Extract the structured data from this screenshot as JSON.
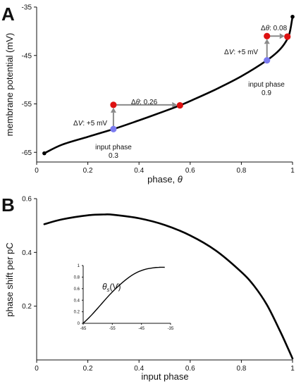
{
  "chart_data": [
    {
      "type": "line",
      "panel_label": "A",
      "xlabel_prefix": "phase, ",
      "xlabel_symbol": "θ",
      "ylabel": "membrane potential (mV)",
      "xlim": [
        0,
        1
      ],
      "ylim": [
        -67,
        -35
      ],
      "x_ticks": [
        0,
        0.2,
        0.4,
        0.6,
        0.8,
        1
      ],
      "x_tick_labels": [
        "0",
        "0.2",
        "0.4",
        "0.6",
        "0.8",
        "1"
      ],
      "y_ticks": [
        -65,
        -55,
        -45,
        -35
      ],
      "y_tick_labels": [
        "-65",
        "-55",
        "-45",
        "-35"
      ],
      "curve": {
        "x": [
          0.03,
          0.1,
          0.2,
          0.3,
          0.4,
          0.5,
          0.56,
          0.6,
          0.7,
          0.8,
          0.9,
          0.95,
          0.98,
          0.99,
          1.0
        ],
        "y": [
          -65.2,
          -63.4,
          -61.8,
          -60.2,
          -58.4,
          -56.5,
          -55.3,
          -54.4,
          -52.0,
          -49.3,
          -46.0,
          -43.8,
          -41.6,
          -40.0,
          -37.0
        ]
      },
      "endpoints": [
        {
          "x": 0.03,
          "y": -65.2
        },
        {
          "x": 1.0,
          "y": -37.0
        }
      ],
      "points": [
        {
          "x": 0.3,
          "y": -60.2,
          "color": "#7b7bf0"
        },
        {
          "x": 0.3,
          "y": -55.2,
          "color": "#dd1111"
        },
        {
          "x": 0.56,
          "y": -55.3,
          "color": "#dd1111"
        },
        {
          "x": 0.9,
          "y": -46.0,
          "color": "#7b7bf0"
        },
        {
          "x": 0.9,
          "y": -41.0,
          "color": "#dd1111"
        },
        {
          "x": 0.98,
          "y": -41.1,
          "color": "#dd1111"
        }
      ],
      "arrows": [
        {
          "x1": 0.3,
          "y1": -60.2,
          "x2": 0.3,
          "y2": -55.2
        },
        {
          "x1": 0.3,
          "y1": -55.2,
          "x2": 0.56,
          "y2": -55.2
        },
        {
          "x1": 0.9,
          "y1": -46.0,
          "x2": 0.9,
          "y2": -41.0
        },
        {
          "x1": 0.9,
          "y1": -41.0,
          "x2": 0.98,
          "y2": -41.0
        }
      ],
      "annotations": {
        "dv_prefix": "Δ",
        "dv_var": "V",
        "dv_value": ": +5 mV",
        "dtheta_prefix": "Δ",
        "dtheta_var": "θ",
        "dtheta_1_value": ": 0.26",
        "dtheta_2_value": ": 0.08",
        "input_phase_1_line1": "input phase",
        "input_phase_1_line2": "0.3",
        "input_phase_2_line1": "input phase",
        "input_phase_2_line2": "0.9"
      }
    },
    {
      "type": "line",
      "panel_label": "B",
      "xlabel": "input phase",
      "ylabel": "phase shift per pC",
      "xlim": [
        0,
        1
      ],
      "ylim": [
        0,
        0.6
      ],
      "x_ticks": [
        0,
        0.2,
        0.4,
        0.6,
        0.8,
        1
      ],
      "x_tick_labels": [
        "0",
        "0.2",
        "0.4",
        "0.6",
        "0.8",
        "1"
      ],
      "y_ticks": [
        0.2,
        0.4,
        0.6
      ],
      "y_tick_labels": [
        "0.2",
        "0.4",
        "0.6"
      ],
      "curve": {
        "x": [
          0.03,
          0.1,
          0.2,
          0.26,
          0.3,
          0.4,
          0.5,
          0.6,
          0.7,
          0.8,
          0.85,
          0.9,
          0.95,
          0.98,
          1.0
        ],
        "y": [
          0.505,
          0.523,
          0.538,
          0.541,
          0.54,
          0.527,
          0.502,
          0.463,
          0.407,
          0.327,
          0.275,
          0.205,
          0.11,
          0.048,
          0.005
        ]
      },
      "inset": {
        "type": "line",
        "label_symbol": "θ",
        "label_sub": "s",
        "label_arg": "(V)",
        "xlim": [
          -65,
          -35
        ],
        "ylim": [
          0,
          1
        ],
        "x_ticks": [
          -65,
          -55,
          -45,
          -35
        ],
        "x_tick_labels": [
          "-65",
          "-55",
          "-45",
          "-35"
        ],
        "y_ticks": [
          0,
          0.2,
          0.4,
          0.6,
          0.8,
          1
        ],
        "y_tick_labels": [
          "0",
          "0.2",
          "0.4",
          "0.6",
          "0.8",
          "1"
        ],
        "curve": {
          "x": [
            -65,
            -62,
            -59,
            -56,
            -53,
            -50,
            -47,
            -44,
            -41,
            -39,
            -37
          ],
          "y": [
            0.0,
            0.15,
            0.32,
            0.49,
            0.64,
            0.77,
            0.87,
            0.93,
            0.96,
            0.97,
            0.97
          ]
        }
      }
    }
  ]
}
